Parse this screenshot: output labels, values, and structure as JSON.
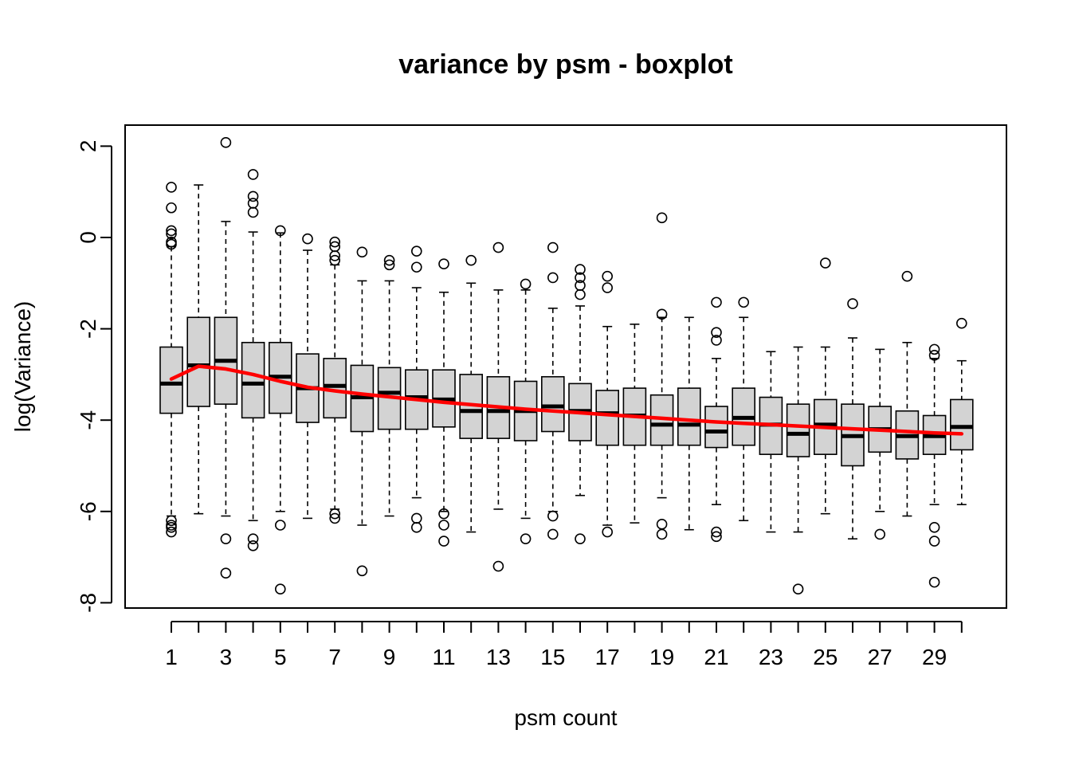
{
  "chart_data": {
    "type": "boxplot",
    "title": "variance by psm - boxplot",
    "xlabel": "psm count",
    "ylabel": "log(Variance)",
    "x_tick_labels_shown": [
      "1",
      "3",
      "5",
      "7",
      "9",
      "11",
      "13",
      "15",
      "17",
      "19",
      "21",
      "23",
      "25",
      "27",
      "29"
    ],
    "y_ticks": [
      -8,
      -6,
      -4,
      -2,
      0,
      2
    ],
    "ylim": [
      -8.1,
      2.45
    ],
    "categories": [
      "1",
      "2",
      "3",
      "4",
      "5",
      "6",
      "7",
      "8",
      "9",
      "10",
      "11",
      "12",
      "13",
      "14",
      "15",
      "16",
      "17",
      "18",
      "19",
      "20",
      "21",
      "22",
      "23",
      "24",
      "25",
      "26",
      "27",
      "28",
      "29",
      "30"
    ],
    "boxes": [
      {
        "lw": -6.1,
        "q1": -3.85,
        "med": -3.2,
        "q3": -2.4,
        "uw": -0.2,
        "out": [
          1.1,
          0.65,
          0.15,
          0.08,
          -0.1,
          -0.15,
          -6.2,
          -6.3,
          -6.35,
          -6.45
        ]
      },
      {
        "lw": -6.05,
        "q1": -3.7,
        "med": -2.8,
        "q3": -1.75,
        "uw": 1.15,
        "out": []
      },
      {
        "lw": -6.1,
        "q1": -3.65,
        "med": -2.7,
        "q3": -1.75,
        "uw": 0.35,
        "out": [
          2.08,
          -6.6,
          -7.35
        ]
      },
      {
        "lw": -6.2,
        "q1": -3.95,
        "med": -3.2,
        "q3": -2.3,
        "uw": 0.12,
        "out": [
          1.38,
          0.9,
          0.75,
          0.55,
          -6.6,
          -6.75
        ]
      },
      {
        "lw": -6.0,
        "q1": -3.85,
        "med": -3.05,
        "q3": -2.3,
        "uw": 0.1,
        "out": [
          0.15,
          -6.3,
          -7.7
        ]
      },
      {
        "lw": -6.15,
        "q1": -4.05,
        "med": -3.3,
        "q3": -2.55,
        "uw": -0.28,
        "out": [
          -0.03
        ]
      },
      {
        "lw": -5.95,
        "q1": -3.95,
        "med": -3.25,
        "q3": -2.65,
        "uw": -0.6,
        "out": [
          -0.1,
          -0.2,
          -0.4,
          -0.5,
          -6.05,
          -6.15
        ]
      },
      {
        "lw": -6.3,
        "q1": -4.25,
        "med": -3.5,
        "q3": -2.8,
        "uw": -0.95,
        "out": [
          -0.32,
          -7.3
        ]
      },
      {
        "lw": -6.1,
        "q1": -4.2,
        "med": -3.4,
        "q3": -2.85,
        "uw": -0.95,
        "out": [
          -0.5,
          -0.6
        ]
      },
      {
        "lw": -5.7,
        "q1": -4.2,
        "med": -3.5,
        "q3": -2.9,
        "uw": -1.1,
        "out": [
          -0.3,
          -0.65,
          -6.15,
          -6.35
        ]
      },
      {
        "lw": -6.0,
        "q1": -4.15,
        "med": -3.55,
        "q3": -2.9,
        "uw": -1.2,
        "out": [
          -0.58,
          -6.05,
          -6.3,
          -6.65
        ]
      },
      {
        "lw": -6.45,
        "q1": -4.4,
        "med": -3.8,
        "q3": -3.0,
        "uw": -1.0,
        "out": [
          -0.5
        ]
      },
      {
        "lw": -5.95,
        "q1": -4.4,
        "med": -3.8,
        "q3": -3.05,
        "uw": -1.15,
        "out": [
          -0.22,
          -7.2
        ]
      },
      {
        "lw": -6.15,
        "q1": -4.45,
        "med": -3.8,
        "q3": -3.15,
        "uw": -1.15,
        "out": [
          -1.02,
          -6.6
        ]
      },
      {
        "lw": -6.0,
        "q1": -4.25,
        "med": -3.7,
        "q3": -3.05,
        "uw": -1.55,
        "out": [
          -0.22,
          -0.88,
          -6.1,
          -6.5
        ]
      },
      {
        "lw": -5.65,
        "q1": -4.45,
        "med": -3.8,
        "q3": -3.2,
        "uw": -1.5,
        "out": [
          -0.7,
          -0.88,
          -1.05,
          -1.25,
          -6.6
        ]
      },
      {
        "lw": -6.3,
        "q1": -4.55,
        "med": -3.85,
        "q3": -3.35,
        "uw": -1.95,
        "out": [
          -0.85,
          -1.1,
          -6.45
        ]
      },
      {
        "lw": -6.25,
        "q1": -4.55,
        "med": -3.9,
        "q3": -3.3,
        "uw": -1.9,
        "out": []
      },
      {
        "lw": -5.7,
        "q1": -4.55,
        "med": -4.1,
        "q3": -3.45,
        "uw": -1.75,
        "out": [
          0.43,
          -1.68,
          -6.28,
          -6.5
        ]
      },
      {
        "lw": -6.4,
        "q1": -4.55,
        "med": -4.1,
        "q3": -3.3,
        "uw": -1.75,
        "out": []
      },
      {
        "lw": -5.85,
        "q1": -4.6,
        "med": -4.25,
        "q3": -3.7,
        "uw": -2.65,
        "out": [
          -1.42,
          -2.08,
          -2.25,
          -6.45,
          -6.55
        ]
      },
      {
        "lw": -6.2,
        "q1": -4.55,
        "med": -3.95,
        "q3": -3.3,
        "uw": -1.75,
        "out": [
          -1.42
        ]
      },
      {
        "lw": -6.45,
        "q1": -4.75,
        "med": -4.1,
        "q3": -3.5,
        "uw": -2.5,
        "out": []
      },
      {
        "lw": -6.45,
        "q1": -4.8,
        "med": -4.3,
        "q3": -3.65,
        "uw": -2.4,
        "out": [
          -7.7
        ]
      },
      {
        "lw": -6.05,
        "q1": -4.75,
        "med": -4.1,
        "q3": -3.55,
        "uw": -2.4,
        "out": [
          -0.56
        ]
      },
      {
        "lw": -6.6,
        "q1": -5.0,
        "med": -4.35,
        "q3": -3.65,
        "uw": -2.2,
        "out": [
          -1.45
        ]
      },
      {
        "lw": -6.0,
        "q1": -4.7,
        "med": -4.2,
        "q3": -3.7,
        "uw": -2.45,
        "out": [
          -6.5
        ]
      },
      {
        "lw": -6.1,
        "q1": -4.85,
        "med": -4.35,
        "q3": -3.8,
        "uw": -2.3,
        "out": [
          -0.85
        ]
      },
      {
        "lw": -5.85,
        "q1": -4.75,
        "med": -4.35,
        "q3": -3.9,
        "uw": -2.65,
        "out": [
          -2.45,
          -2.58,
          -6.35,
          -6.65,
          -7.55
        ]
      },
      {
        "lw": -5.85,
        "q1": -4.65,
        "med": -4.15,
        "q3": -3.55,
        "uw": -2.7,
        "out": [
          -1.88
        ]
      }
    ],
    "trend_line": {
      "color": "#ff0000",
      "x": [
        1,
        2,
        3,
        4,
        5,
        6,
        7,
        8,
        9,
        10,
        11,
        12,
        13,
        14,
        15,
        16,
        17,
        18,
        19,
        20,
        21,
        22,
        23,
        24,
        25,
        26,
        27,
        28,
        29,
        30
      ],
      "y": [
        -3.1,
        -2.82,
        -2.88,
        -3.0,
        -3.15,
        -3.28,
        -3.36,
        -3.43,
        -3.49,
        -3.55,
        -3.61,
        -3.66,
        -3.71,
        -3.76,
        -3.8,
        -3.84,
        -3.88,
        -3.92,
        -3.96,
        -4.0,
        -4.04,
        -4.07,
        -4.1,
        -4.13,
        -4.16,
        -4.19,
        -4.22,
        -4.25,
        -4.28,
        -4.3
      ]
    },
    "box_fill": "#d3d3d3",
    "grid": false
  }
}
